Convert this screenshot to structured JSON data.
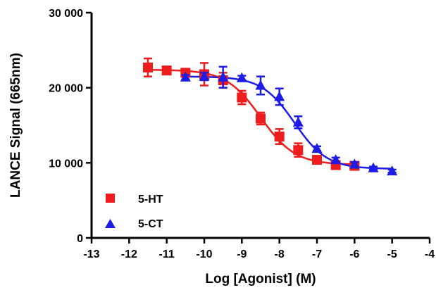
{
  "chart_data": {
    "type": "scatter",
    "title": "",
    "xlabel": "Log [Agonist] (M)",
    "ylabel": "LANCE Signal (665nm)",
    "xlim": [
      -13,
      -4
    ],
    "ylim": [
      0,
      30000
    ],
    "x_ticks": [
      "-13",
      "-12",
      "-11",
      "-10",
      "-9",
      "-8",
      "-7",
      "-6",
      "-5",
      "-4"
    ],
    "y_ticks": [
      "0",
      "10 000",
      "20 000",
      "30 000"
    ],
    "legend_position": "bottom-left",
    "grid": false,
    "fit": "sigmoidal dose-response curve per series",
    "series": [
      {
        "name": "5-HT",
        "color": "#ee1c1c",
        "marker": "square",
        "points": [
          {
            "x": -11.5,
            "y": 22700,
            "err": 1200
          },
          {
            "x": -11.0,
            "y": 22300,
            "err": 300
          },
          {
            "x": -10.5,
            "y": 22000,
            "err": 300
          },
          {
            "x": -10.0,
            "y": 21800,
            "err": 1500
          },
          {
            "x": -9.5,
            "y": 21000,
            "err": 1000
          },
          {
            "x": -9.0,
            "y": 18700,
            "err": 900
          },
          {
            "x": -8.5,
            "y": 15900,
            "err": 800
          },
          {
            "x": -8.0,
            "y": 13500,
            "err": 1000
          },
          {
            "x": -7.5,
            "y": 11700,
            "err": 900
          },
          {
            "x": -7.0,
            "y": 10400,
            "err": 400
          },
          {
            "x": -6.5,
            "y": 9700,
            "err": 500
          },
          {
            "x": -6.0,
            "y": 9600,
            "err": 400
          }
        ],
        "fit": {
          "top": 22400,
          "bottom": 9750,
          "logEC50": -8.5,
          "hill": 0.95
        }
      },
      {
        "name": "5-CT",
        "color": "#1c1ce6",
        "marker": "triangle",
        "points": [
          {
            "x": -10.5,
            "y": 21400,
            "err": 300
          },
          {
            "x": -10.0,
            "y": 21500,
            "err": 500
          },
          {
            "x": -9.5,
            "y": 21400,
            "err": 1400
          },
          {
            "x": -9.0,
            "y": 21300,
            "err": 300
          },
          {
            "x": -8.5,
            "y": 20300,
            "err": 1200
          },
          {
            "x": -8.0,
            "y": 18800,
            "err": 1100
          },
          {
            "x": -7.5,
            "y": 15400,
            "err": 800
          },
          {
            "x": -7.0,
            "y": 11900,
            "err": 300
          },
          {
            "x": -6.5,
            "y": 10400,
            "err": 300
          },
          {
            "x": -6.0,
            "y": 9800,
            "err": 300
          },
          {
            "x": -5.5,
            "y": 9300,
            "err": 200
          },
          {
            "x": -5.0,
            "y": 8900,
            "err": 200
          }
        ],
        "fit": {
          "top": 21500,
          "bottom": 9200,
          "logEC50": -7.6,
          "hill": 1.0
        }
      }
    ]
  }
}
